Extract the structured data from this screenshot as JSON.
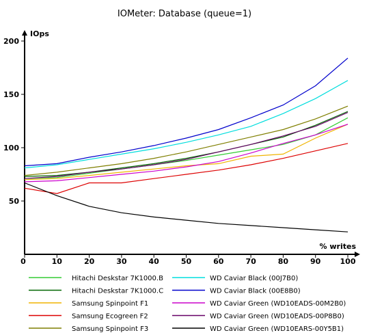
{
  "chart_data": {
    "type": "line",
    "title": "IOMeter: Database (queue=1)",
    "ylabel": "IOps",
    "xlabel": "% writes",
    "x": [
      0,
      10,
      20,
      30,
      40,
      50,
      60,
      70,
      80,
      90,
      100
    ],
    "xlim": [
      0,
      100
    ],
    "ylim": [
      0,
      200
    ],
    "x_ticks": [
      "0",
      "10",
      "20",
      "30",
      "40",
      "50",
      "60",
      "70",
      "80",
      "90",
      "100"
    ],
    "y_ticks": [
      "50",
      "100",
      "150",
      "200"
    ],
    "grid": false,
    "legend_position": "bottom",
    "series": [
      {
        "name": "Hitachi Deskstar 7K1000.B",
        "color": "#33cc33",
        "values": [
          71,
          72,
          76,
          80,
          84,
          88,
          93,
          98,
          103,
          112,
          128
        ]
      },
      {
        "name": "Hitachi Deskstar 7K1000.C",
        "color": "#006600",
        "values": [
          73,
          74,
          77,
          81,
          85,
          90,
          96,
          103,
          110,
          121,
          134
        ]
      },
      {
        "name": "Samsung Spinpoint F1",
        "color": "#f0b400",
        "values": [
          70,
          71,
          74,
          77,
          80,
          83,
          85,
          92,
          94,
          109,
          122
        ]
      },
      {
        "name": "Samsung Ecogreen F2",
        "color": "#dd0000",
        "values": [
          62,
          57,
          67,
          67,
          71,
          75,
          79,
          84,
          90,
          97,
          104
        ]
      },
      {
        "name": "Samsung Spinpoint F3",
        "color": "#7f7f00",
        "values": [
          74,
          77,
          81,
          85,
          90,
          96,
          103,
          110,
          117,
          127,
          139
        ]
      },
      {
        "name": "WD Caviar Black (00J7B0)",
        "color": "#00dddd",
        "values": [
          81,
          84,
          89,
          94,
          99,
          105,
          112,
          120,
          132,
          146,
          163
        ]
      },
      {
        "name": "WD Caviar Black (00E8B0)",
        "color": "#0000cc",
        "values": [
          83,
          85,
          91,
          96,
          102,
          109,
          117,
          128,
          140,
          158,
          184
        ]
      },
      {
        "name": "WD Caviar Green (WD10EADS-00M2B0)",
        "color": "#cc00cc",
        "values": [
          68,
          69,
          72,
          75,
          78,
          82,
          87,
          95,
          104,
          112,
          122
        ]
      },
      {
        "name": "WD Caviar Green (WD10EADS-00P8B0)",
        "color": "#660066",
        "values": [
          71,
          73,
          77,
          80,
          84,
          89,
          96,
          103,
          111,
          120,
          133
        ]
      },
      {
        "name": "WD Caviar Green (WD10EARS-00Y5B1)",
        "color": "#000000",
        "values": [
          67,
          55,
          45,
          39,
          35,
          32,
          29,
          27,
          25,
          23,
          21
        ]
      }
    ]
  }
}
